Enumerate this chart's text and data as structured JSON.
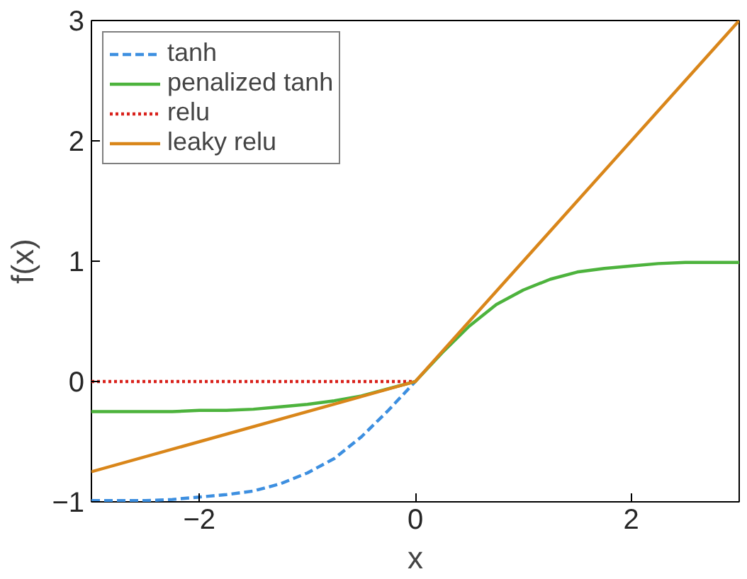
{
  "chart_data": {
    "type": "line",
    "xlabel": "x",
    "ylabel": "f(x)",
    "xlim": [
      -3,
      3
    ],
    "ylim": [
      -1,
      3
    ],
    "xticks": [
      -2,
      0,
      2
    ],
    "yticks": [
      -1,
      0,
      1,
      2,
      3
    ],
    "grid": false,
    "legend": "top left",
    "marker": "none",
    "x": [
      -3,
      -2.75,
      -2.5,
      -2.25,
      -2,
      -1.75,
      -1.5,
      -1.25,
      -1,
      -0.75,
      -0.5,
      -0.25,
      0,
      0.25,
      0.5,
      0.75,
      1,
      1.25,
      1.5,
      1.75,
      2,
      2.25,
      2.5,
      2.75,
      3
    ],
    "series": [
      {
        "name": "tanh",
        "color": "#3d8fe0",
        "line_style": "dashed",
        "values": [
          -0.99,
          -0.99,
          -0.99,
          -0.98,
          -0.96,
          -0.94,
          -0.91,
          -0.85,
          -0.76,
          -0.64,
          -0.46,
          -0.24,
          0,
          null,
          null,
          null,
          null,
          null,
          null,
          null,
          null,
          null,
          null,
          null,
          null
        ]
      },
      {
        "name": "penalized tanh",
        "color": "#4db33d",
        "line_style": "solid",
        "values": [
          -0.25,
          -0.25,
          -0.25,
          -0.25,
          -0.24,
          -0.24,
          -0.23,
          -0.21,
          -0.19,
          -0.16,
          -0.12,
          -0.06,
          0,
          0.24,
          0.46,
          0.64,
          0.76,
          0.85,
          0.91,
          0.94,
          0.96,
          0.98,
          0.99,
          0.99,
          0.99
        ]
      },
      {
        "name": "relu",
        "color": "#d9221c",
        "line_style": "dotted",
        "values": [
          0,
          0,
          0,
          0,
          0,
          0,
          0,
          0,
          0,
          0,
          0,
          0,
          0,
          null,
          null,
          null,
          null,
          null,
          null,
          null,
          null,
          null,
          null,
          null,
          null
        ]
      },
      {
        "name": "leaky relu",
        "color": "#d9861a",
        "line_style": "solid",
        "x": [
          -3,
          0,
          3
        ],
        "values": [
          -0.75,
          0,
          3
        ]
      }
    ]
  }
}
